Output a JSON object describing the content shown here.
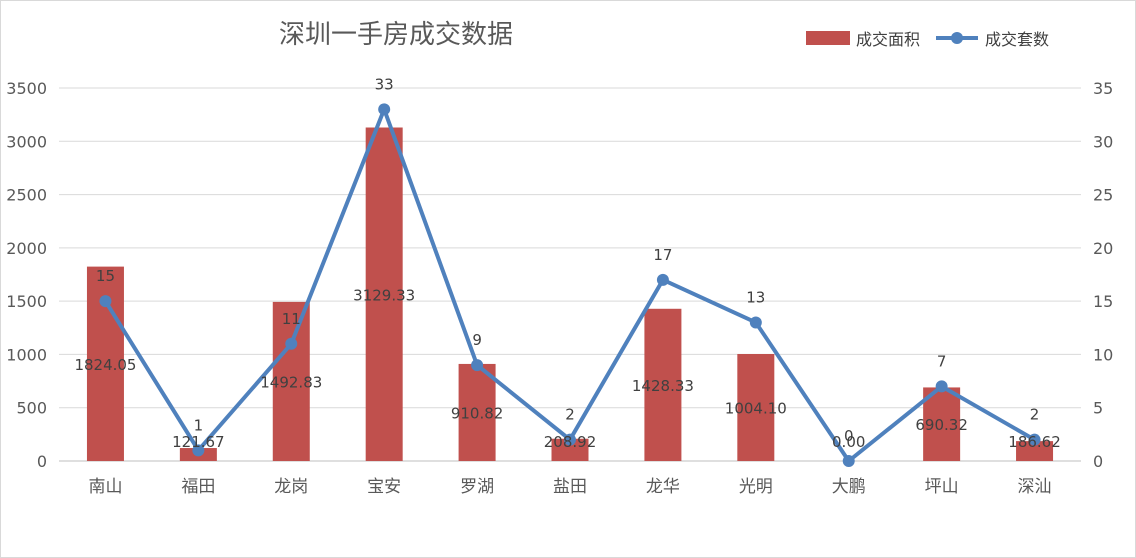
{
  "chart_data": {
    "type": "bar",
    "title": "深圳一手房成交数据",
    "categories": [
      "南山",
      "福田",
      "龙岗",
      "宝安",
      "罗湖",
      "盐田",
      "龙华",
      "光明",
      "大鹏",
      "坪山",
      "深汕"
    ],
    "series": [
      {
        "name": "成交面积",
        "type": "bar",
        "axis": "left",
        "color": "#c0504d",
        "values": [
          1824.05,
          121.67,
          1492.83,
          3129.33,
          910.82,
          208.92,
          1428.33,
          1004.1,
          0.0,
          690.32,
          186.62
        ],
        "labels": [
          "1824.05",
          "121.67",
          "1492.83",
          "3129.33",
          "910.82",
          "208.92",
          "1428.33",
          "1004.10",
          "0.00",
          "690.32",
          "186.62"
        ]
      },
      {
        "name": "成交套数",
        "type": "line",
        "axis": "right",
        "color": "#4f81bd",
        "values": [
          15,
          1,
          11,
          33,
          9,
          2,
          17,
          13,
          0,
          7,
          2
        ],
        "labels": [
          "15",
          "1",
          "11",
          "33",
          "9",
          "2",
          "17",
          "13",
          "0",
          "7",
          "2"
        ]
      }
    ],
    "ylim": [
      0,
      3500
    ],
    "yticks": [
      "0",
      "500",
      "1000",
      "1500",
      "2000",
      "2500",
      "3000",
      "3500"
    ],
    "y2lim": [
      0,
      35
    ],
    "y2ticks": [
      "0",
      "5",
      "10",
      "15",
      "20",
      "25",
      "30",
      "35"
    ],
    "grid": true,
    "legend": "top-right"
  }
}
